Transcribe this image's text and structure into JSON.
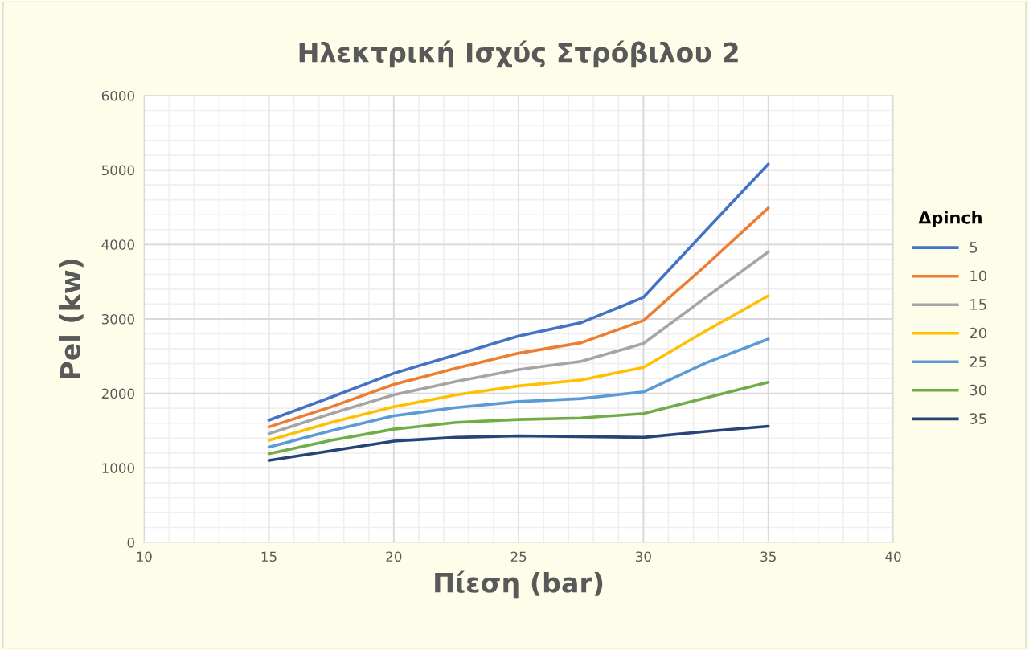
{
  "chart_data": {
    "type": "line",
    "title": "Ηλεκτρική Ισχύς Στρόβιλου 2",
    "xlabel": "Πίεση (bar)",
    "ylabel": "Pel (kw)",
    "legend_title": "Δpinch",
    "x": [
      15,
      17.5,
      20,
      22.5,
      25,
      27.5,
      30,
      32.5,
      35
    ],
    "series": [
      {
        "name": "5",
        "color": "#4472c4",
        "values": [
          1640,
          1950,
          2270,
          2520,
          2770,
          2950,
          3290,
          4190,
          5080
        ]
      },
      {
        "name": "10",
        "color": "#ed7d31",
        "values": [
          1550,
          1820,
          2120,
          2340,
          2540,
          2680,
          2980,
          3720,
          4490
        ]
      },
      {
        "name": "15",
        "color": "#a5a5a5",
        "values": [
          1460,
          1730,
          1980,
          2160,
          2320,
          2430,
          2670,
          3290,
          3900
        ]
      },
      {
        "name": "20",
        "color": "#ffc000",
        "values": [
          1370,
          1610,
          1820,
          1980,
          2100,
          2180,
          2350,
          2840,
          3310
        ]
      },
      {
        "name": "25",
        "color": "#5b9bd5",
        "values": [
          1280,
          1500,
          1700,
          1810,
          1890,
          1930,
          2020,
          2410,
          2730
        ]
      },
      {
        "name": "30",
        "color": "#70ad47",
        "values": [
          1190,
          1370,
          1520,
          1610,
          1650,
          1670,
          1730,
          1940,
          2150
        ]
      },
      {
        "name": "35",
        "color": "#264478",
        "values": [
          1100,
          1230,
          1360,
          1410,
          1430,
          1420,
          1410,
          1490,
          1560
        ]
      }
    ],
    "xlim": [
      10,
      40
    ],
    "xticks": [
      10,
      15,
      20,
      25,
      30,
      35,
      40
    ],
    "ylim": [
      0,
      6000
    ],
    "yticks": [
      0,
      1000,
      2000,
      3000,
      4000,
      5000,
      6000
    ],
    "grid": true,
    "legend": "right"
  }
}
